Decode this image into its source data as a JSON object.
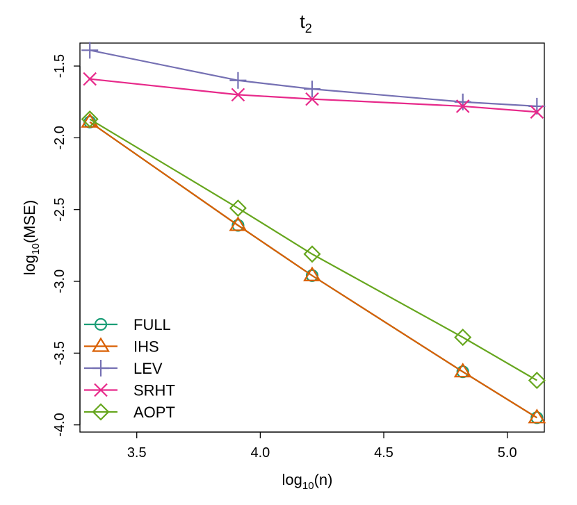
{
  "chart_data": {
    "type": "line",
    "title": {
      "base": "t",
      "sub": "2"
    },
    "xlabel": {
      "pre": "log",
      "sub": "10",
      "post": "(n)"
    },
    "ylabel": {
      "pre": "log",
      "sub": "10",
      "post": "(MSE)"
    },
    "xlim": [
      3.27,
      5.15
    ],
    "ylim": [
      -4.05,
      -1.34
    ],
    "xticks": [
      3.5,
      4.0,
      4.5,
      5.0
    ],
    "xtick_labels": [
      "3.5",
      "4.0",
      "4.5",
      "5.0"
    ],
    "yticks": [
      -4.0,
      -3.5,
      -3.0,
      -2.5,
      -2.0,
      -1.5
    ],
    "ytick_labels": [
      "-4.0",
      "-3.5",
      "-3.0",
      "-2.5",
      "-2.0",
      "-1.5"
    ],
    "x": [
      3.31,
      3.91,
      4.21,
      4.82,
      5.12
    ],
    "series": [
      {
        "name": "FULL",
        "color": "#1b9e77",
        "marker": "circle",
        "values": [
          -1.89,
          -2.61,
          -2.96,
          -3.63,
          -3.95
        ]
      },
      {
        "name": "IHS",
        "color": "#d95f02",
        "marker": "triangle",
        "values": [
          -1.89,
          -2.61,
          -2.96,
          -3.63,
          -3.95
        ]
      },
      {
        "name": "LEV",
        "color": "#7570b3",
        "marker": "plus",
        "values": [
          -1.39,
          -1.6,
          -1.66,
          -1.75,
          -1.78
        ]
      },
      {
        "name": "SRHT",
        "color": "#e7298a",
        "marker": "cross",
        "values": [
          -1.59,
          -1.7,
          -1.73,
          -1.78,
          -1.82
        ]
      },
      {
        "name": "AOPT",
        "color": "#66a61e",
        "marker": "diamond",
        "values": [
          -1.87,
          -2.49,
          -2.81,
          -3.39,
          -3.69
        ]
      }
    ],
    "legend_position": "bottom-left",
    "grid": false
  }
}
